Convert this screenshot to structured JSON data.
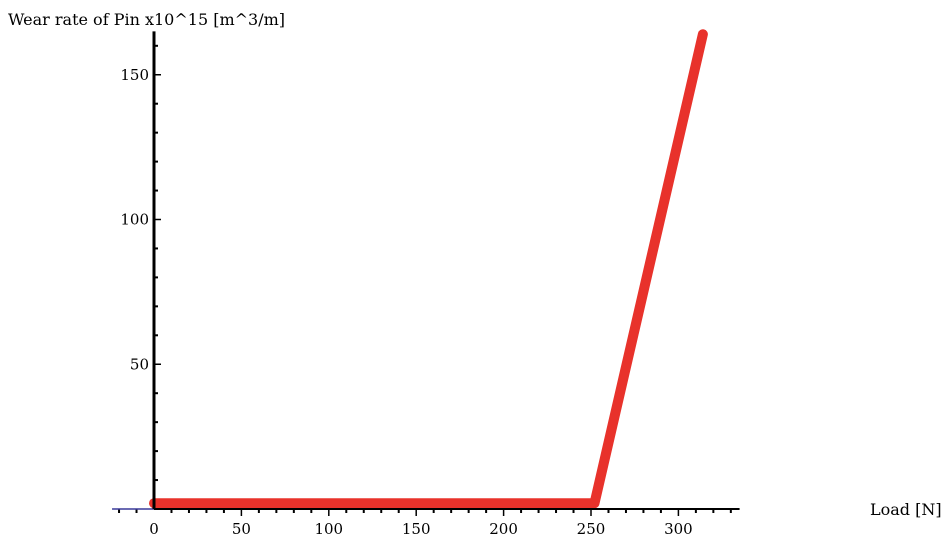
{
  "chart_data": {
    "type": "line",
    "title": "",
    "xlabel": "Load [N]",
    "ylabel": "Wear rate of Pin x10^15 [m^3/m]",
    "xlim": [
      -25,
      335
    ],
    "ylim": [
      0,
      165
    ],
    "x_ticks": [
      0,
      50,
      100,
      150,
      200,
      250,
      300
    ],
    "y_ticks": [
      50,
      100,
      150
    ],
    "grid": false,
    "legend": "none",
    "series": [
      {
        "color": "#e8322b",
        "points": [
          [
            0,
            2
          ],
          [
            252,
            2
          ],
          [
            314,
            164
          ]
        ]
      }
    ]
  }
}
